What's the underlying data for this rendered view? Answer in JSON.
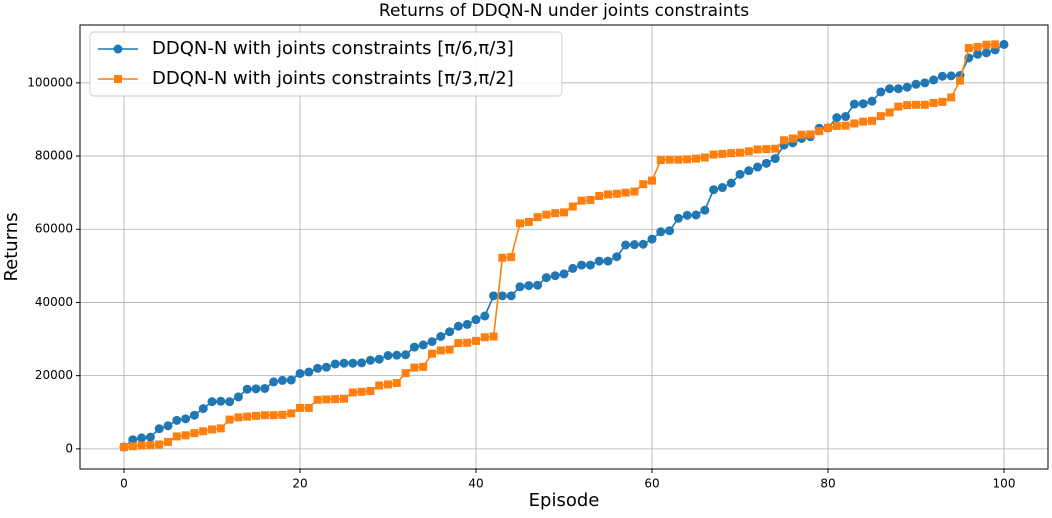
{
  "chart_data": {
    "type": "line",
    "title": "Returns of DDQN-N under joints constraints",
    "xlabel": "Episode",
    "ylabel": "Returns",
    "x": [
      0,
      1,
      2,
      3,
      4,
      5,
      6,
      7,
      8,
      9,
      10,
      11,
      12,
      13,
      14,
      15,
      16,
      17,
      18,
      19,
      20,
      21,
      22,
      23,
      24,
      25,
      26,
      27,
      28,
      29,
      30,
      31,
      32,
      33,
      34,
      35,
      36,
      37,
      38,
      39,
      40,
      41,
      42,
      43,
      44,
      45,
      46,
      47,
      48,
      49,
      50,
      51,
      52,
      53,
      54,
      55,
      56,
      57,
      58,
      59,
      60,
      61,
      62,
      63,
      64,
      65,
      66,
      67,
      68,
      69,
      70,
      71,
      72,
      73,
      74,
      75,
      76,
      77,
      78,
      79,
      80,
      81,
      82,
      83,
      84,
      85,
      86,
      87,
      88,
      89,
      90,
      91,
      92,
      93,
      94,
      95,
      96,
      97,
      98,
      99,
      100
    ],
    "series": [
      {
        "name": "DDQN-N with joints constraints [π/6,π/3]",
        "color": "#1f77b4",
        "marker": "circle",
        "values": [
          500,
          2500,
          3000,
          3200,
          5500,
          6300,
          7800,
          8200,
          9200,
          11000,
          12900,
          13000,
          12900,
          14200,
          16300,
          16400,
          16500,
          18300,
          18700,
          18800,
          20600,
          21000,
          22000,
          22300,
          23200,
          23400,
          23400,
          23500,
          24200,
          24500,
          25500,
          25600,
          25700,
          27800,
          28400,
          29300,
          30700,
          32000,
          33500,
          34000,
          35300,
          36300,
          41800,
          41800,
          41800,
          44300,
          44600,
          44700,
          46800,
          47300,
          47800,
          49300,
          50200,
          50200,
          51300,
          51300,
          52500,
          55700,
          55800,
          55900,
          57300,
          59300,
          59600,
          63000,
          63800,
          63900,
          65200,
          70800,
          71400,
          72600,
          75000,
          76000,
          77000,
          78000,
          79300,
          83000,
          83600,
          84800,
          85300,
          87600,
          87700,
          90500,
          90800,
          94200,
          94300,
          95000,
          97500,
          98400,
          98400,
          98800,
          99600,
          100000,
          100800,
          101800,
          101900,
          102000,
          106800,
          107800,
          108200,
          109000,
          110500
        ]
      },
      {
        "name": "DDQN-N with joints constraints [π/3,π/2]",
        "color": "#ff7f0e",
        "marker": "square",
        "values": [
          500,
          700,
          900,
          1000,
          1200,
          1900,
          3400,
          3700,
          4300,
          4800,
          5300,
          5600,
          8000,
          8600,
          8800,
          9000,
          9200,
          9200,
          9300,
          9700,
          11200,
          11200,
          13400,
          13500,
          13600,
          13700,
          15400,
          15600,
          15800,
          17300,
          17600,
          18000,
          20700,
          22200,
          22400,
          26000,
          26900,
          27100,
          28900,
          29000,
          29500,
          30500,
          30700,
          52200,
          52400,
          61600,
          62000,
          63300,
          64000,
          64400,
          64600,
          66200,
          67800,
          68000,
          69100,
          69500,
          69700,
          70000,
          70300,
          72300,
          73300,
          78900,
          79000,
          79000,
          79100,
          79300,
          79600,
          80400,
          80600,
          80800,
          80900,
          81300,
          81800,
          81900,
          82000,
          84300,
          84800,
          85800,
          85900,
          86800,
          87700,
          88200,
          88300,
          88900,
          89400,
          89600,
          90900,
          91900,
          93500,
          93900,
          94000,
          94000,
          94500,
          94800,
          96000,
          100600,
          109500,
          109800,
          110400,
          110500,
          null
        ]
      }
    ],
    "xlim": [
      -5,
      105
    ],
    "ylim": [
      -5500,
      115800
    ],
    "xticks": [
      0,
      20,
      40,
      60,
      80,
      100
    ],
    "yticks": [
      0,
      20000,
      40000,
      60000,
      80000,
      100000
    ],
    "grid": true,
    "legend": "upper left"
  }
}
